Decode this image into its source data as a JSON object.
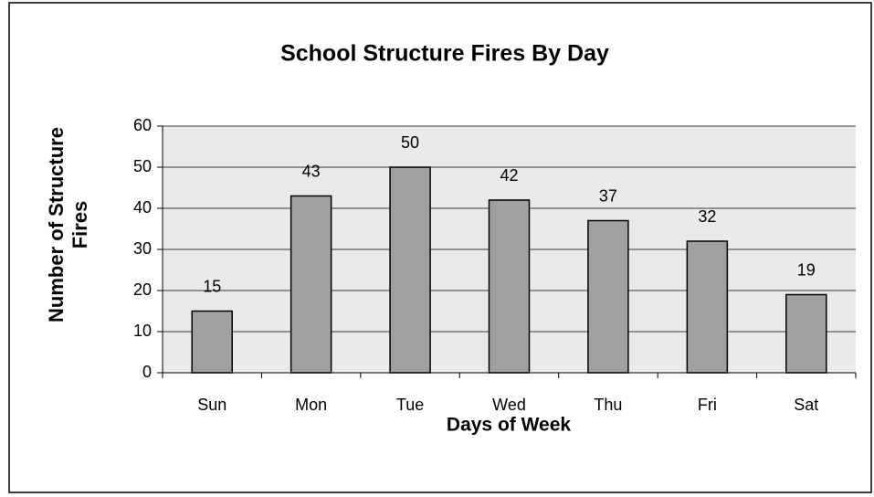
{
  "chart_data": {
    "type": "bar",
    "title": "School Structure Fires By Day",
    "x_label": "Days of Week",
    "y_label": "Number of Structure Fires",
    "categories": [
      "Sun",
      "Mon",
      "Tue",
      "Wed",
      "Thu",
      "Fri",
      "Sat"
    ],
    "values": [
      15,
      43,
      50,
      42,
      37,
      32,
      19
    ],
    "color": "#a0a0a0",
    "ylim": [
      0,
      60
    ],
    "yticks": [
      0,
      10,
      20,
      30,
      40,
      50,
      60
    ],
    "grid": true
  }
}
